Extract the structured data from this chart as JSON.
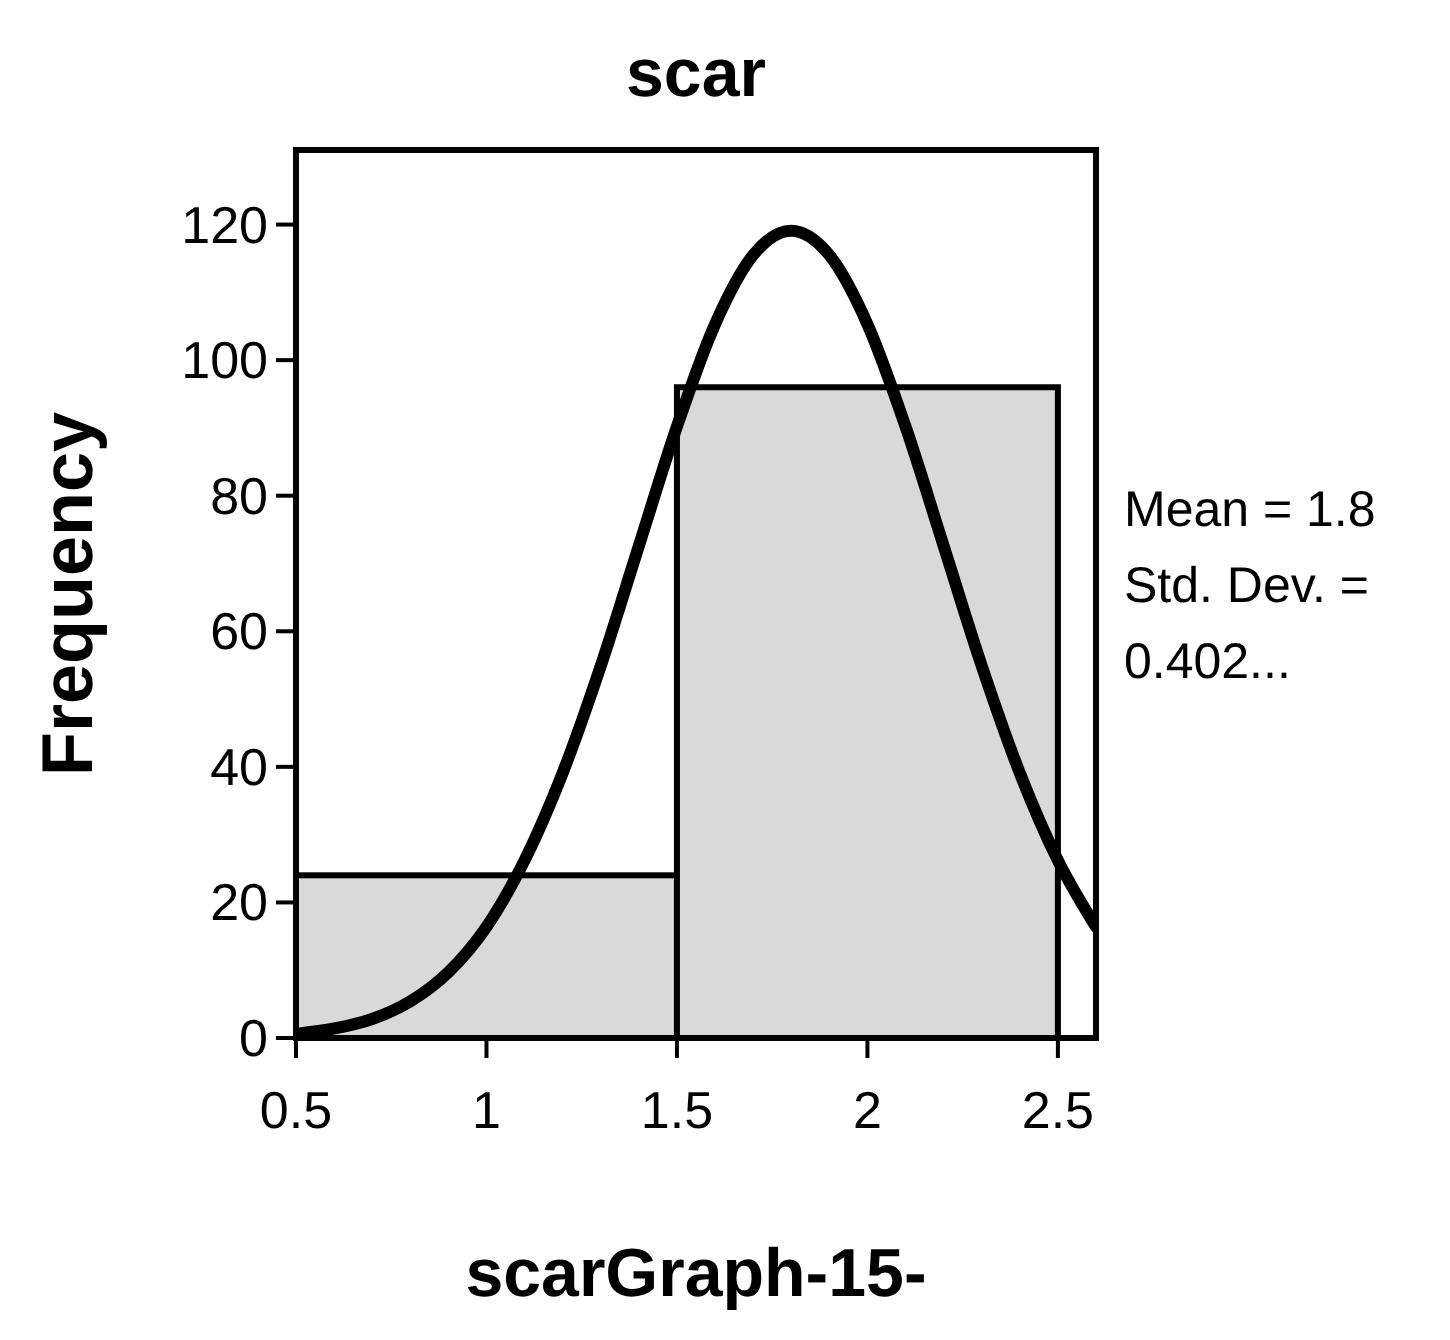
{
  "chart_data": {
    "type": "histogram",
    "title": "scar",
    "xlabel": "scarGraph-15-",
    "ylabel": "Frequency",
    "bins": [
      0.5,
      1.5,
      2.5
    ],
    "values": [
      24,
      96
    ],
    "color": "#d9d9d9",
    "series": [
      {
        "type": "line",
        "color": "#000000",
        "x": [
          0.5,
          0.6,
          0.7,
          0.8,
          0.9,
          1.0,
          1.1,
          1.2,
          1.3,
          1.4,
          1.5,
          1.6,
          1.7,
          1.8,
          1.9,
          2.0,
          2.1,
          2.2,
          2.3,
          2.4,
          2.5,
          2.6
        ],
        "values": [
          0.6,
          1.4,
          2.8,
          5.4,
          9.7,
          16.4,
          26.2,
          39.1,
          54.9,
          72.6,
          90.2,
          105.3,
          115.5,
          119.1,
          115.5,
          105.3,
          90.2,
          72.6,
          54.9,
          39.1,
          26.2,
          16.4
        ]
      }
    ],
    "xlim": [
      0.5,
      2.6
    ],
    "xticks": [
      0.5,
      1,
      1.5,
      2,
      2.5
    ],
    "ylim": [
      0,
      131
    ],
    "yticks": [
      0,
      20,
      40,
      60,
      80,
      100,
      120
    ],
    "annotations": [
      "Mean = 1.8",
      "Std. Dev. =",
      "0.402..."
    ]
  }
}
